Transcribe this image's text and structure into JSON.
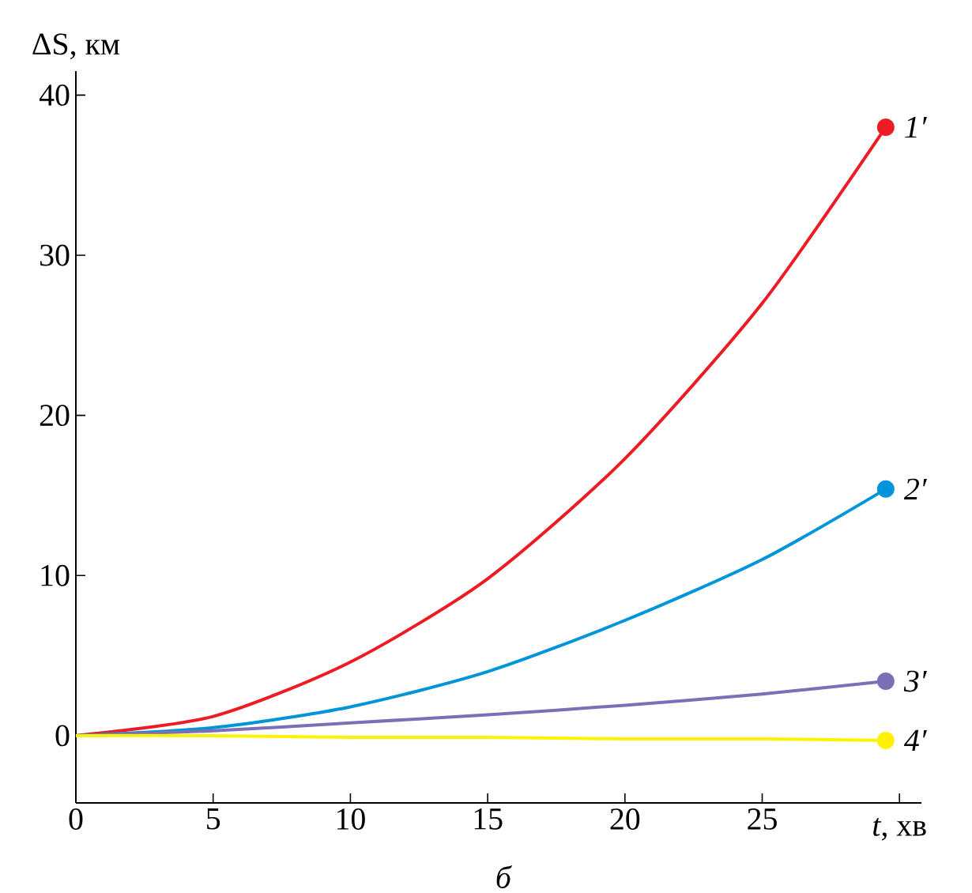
{
  "chart_data": {
    "type": "line",
    "xlabel": "*t*, хв",
    "ylabel": "ΔS, км",
    "annotations": [
      "*б*"
    ],
    "xlim": [
      0,
      30.8
    ],
    "ylim": [
      -4.2,
      41.5
    ],
    "xticks": [
      0,
      5,
      10,
      15,
      20,
      25,
      {
        "value": 30,
        "label": null
      }
    ],
    "yticks": [
      0,
      10,
      20,
      30,
      40
    ],
    "grid": false,
    "legend": false,
    "line_style": "solid",
    "x": [
      0,
      5,
      10,
      15,
      20,
      25,
      29.5
    ],
    "series": [
      {
        "name": "*1′*",
        "color": "#ed1c24",
        "values": [
          0,
          1.2,
          4.6,
          9.8,
          17.3,
          27,
          38
        ]
      },
      {
        "name": "*2′*",
        "color": "#0095d9",
        "values": [
          0,
          0.5,
          1.8,
          4.0,
          7.2,
          11.0,
          15.4
        ]
      },
      {
        "name": "*3′*",
        "color": "#7b6fb5",
        "values": [
          0,
          0.3,
          0.8,
          1.3,
          1.9,
          2.6,
          3.4
        ]
      },
      {
        "name": "*4′*",
        "color": "#fff200",
        "values": [
          0,
          0,
          -0.1,
          -0.1,
          -0.2,
          -0.2,
          -0.3
        ]
      }
    ]
  }
}
